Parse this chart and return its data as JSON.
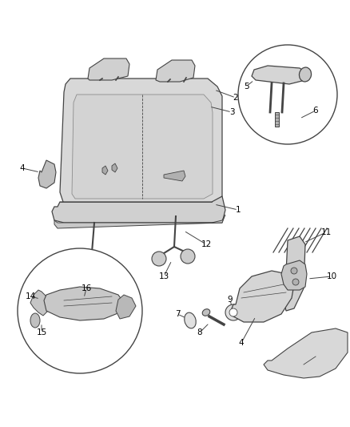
{
  "bg_color": "#ffffff",
  "line_color": "#444444",
  "label_color": "#000000",
  "label_fontsize": 7.5,
  "fig_width": 4.38,
  "fig_height": 5.33,
  "dpi": 100
}
